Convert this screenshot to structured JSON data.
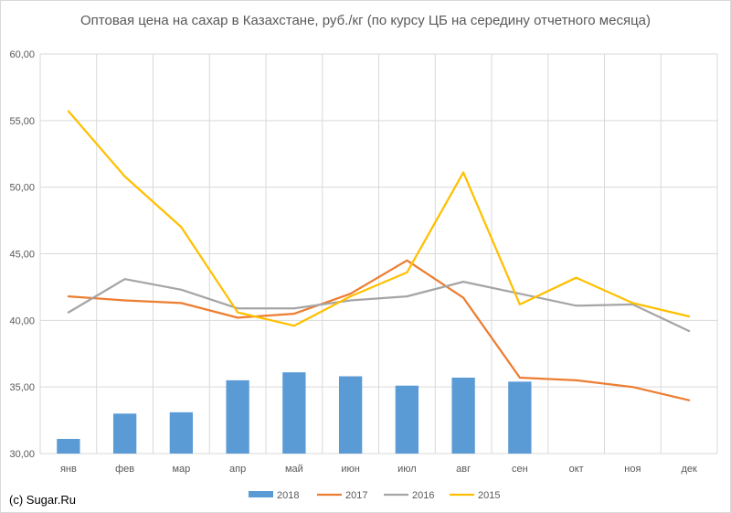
{
  "chart_data": {
    "type": "bar",
    "title": "Оптовая цена на сахар в Казахстане, руб./кг (по курсу ЦБ на середину отчетного месяца)",
    "xlabel": "",
    "ylabel": "",
    "categories": [
      "янв",
      "фев",
      "мар",
      "апр",
      "май",
      "июн",
      "июл",
      "авг",
      "сен",
      "окт",
      "ноя",
      "дек"
    ],
    "ylim": [
      30,
      60
    ],
    "yticks": [
      "30,00",
      "35,00",
      "40,00",
      "45,00",
      "50,00",
      "55,00",
      "60,00"
    ],
    "grid": true,
    "legend_position": "bottom",
    "series": [
      {
        "name": "2018",
        "kind": "bar",
        "color": "#5b9bd5",
        "values": [
          31.1,
          33.0,
          33.1,
          35.5,
          36.1,
          35.8,
          35.1,
          35.7,
          35.4,
          null,
          null,
          null
        ]
      },
      {
        "name": "2017",
        "kind": "line",
        "color": "#ed7d31",
        "values": [
          41.8,
          41.5,
          41.3,
          40.2,
          40.5,
          42.0,
          44.5,
          41.7,
          35.7,
          35.5,
          35.0,
          34.0
        ]
      },
      {
        "name": "2016",
        "kind": "line",
        "color": "#a5a5a5",
        "values": [
          40.6,
          43.1,
          42.3,
          40.9,
          40.9,
          41.5,
          41.8,
          42.9,
          42.0,
          41.1,
          41.2,
          39.2
        ]
      },
      {
        "name": "2015",
        "kind": "line",
        "color": "#ffc000",
        "values": [
          55.7,
          50.8,
          47.0,
          40.6,
          39.6,
          41.8,
          43.6,
          51.1,
          41.2,
          43.2,
          41.3,
          40.3
        ]
      }
    ]
  },
  "copyright": "(c) Sugar.Ru"
}
